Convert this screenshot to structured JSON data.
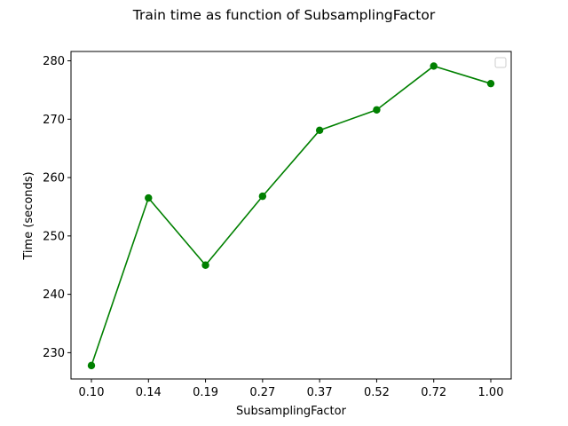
{
  "chart_data": {
    "type": "line",
    "title": "Train time as function of SubsamplingFactor",
    "xlabel": "SubsamplingFactor",
    "ylabel": "Time (seconds)",
    "categories": [
      "0.10",
      "0.14",
      "0.19",
      "0.27",
      "0.37",
      "0.52",
      "0.72",
      "1.00"
    ],
    "series": [
      {
        "values": [
          227.8,
          256.5,
          245.0,
          256.8,
          268.1,
          271.6,
          279.1,
          276.1
        ],
        "color": "#008000",
        "marker": "circle"
      }
    ],
    "ylim": [
      225.5,
      281.6
    ],
    "yticks": [
      230,
      240,
      250,
      260,
      270,
      280
    ],
    "grid": false,
    "legend": {
      "location": "top-right",
      "entries": []
    }
  }
}
